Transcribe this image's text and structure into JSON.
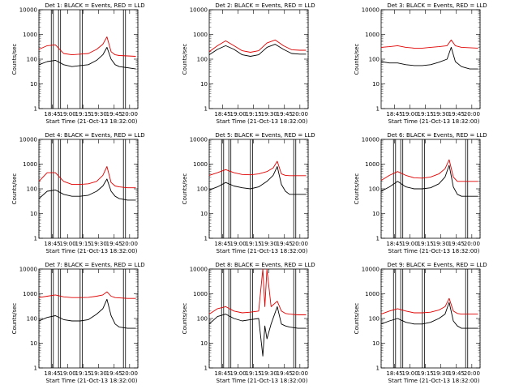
{
  "panel_titles": [
    "Det 1: BLACK = Events, RED = LLD",
    "Det 2: BLACK = Events, RED = LLD",
    "Det 3: BLACK = Events, RED = LLD",
    "Det 4: BLACK = Events, RED = LLD",
    "Det 5: BLACK = Events, RED = LLD",
    "Det 6: BLACK = Events, RED = LLD",
    "Det 7: BLACK = Events, RED = LLD",
    "Det 8: BLACK = Events, RED = LLD",
    "Det 9: BLACK = Events, RED = LLD"
  ],
  "ylabel": "Counts/sec",
  "xlabel": "Start Time (21-Oct-13 18:32:00)",
  "colors": {
    "events": "#000000",
    "lld": "#e00000"
  },
  "chart_data": [
    {
      "type": "line",
      "title": "Det 1: BLACK = Events, RED = LLD",
      "xlabel": "Start Time (21-Oct-13 18:32:00)",
      "ylabel": "Counts/sec",
      "y_scale": "log",
      "ylim": [
        1,
        10000
      ],
      "y_ticks": [
        "1",
        "10",
        "100",
        "1000",
        "10000"
      ],
      "x_ticks": [
        "18:45",
        "19:00",
        "19:15",
        "19:30",
        "19:45",
        "20:00"
      ],
      "x": [
        "18:32",
        "18:40",
        "18:48",
        "18:56",
        "19:04",
        "19:12",
        "19:20",
        "19:28",
        "19:34",
        "19:38",
        "19:42",
        "19:46",
        "19:50",
        "19:58",
        "20:06"
      ],
      "series": [
        {
          "name": "BLACK = Events",
          "values": [
            60,
            80,
            90,
            60,
            50,
            55,
            60,
            90,
            150,
            300,
            100,
            60,
            50,
            45,
            40
          ]
        },
        {
          "name": "RED = LLD",
          "values": [
            250,
            350,
            380,
            170,
            150,
            160,
            170,
            250,
            400,
            800,
            200,
            150,
            140,
            135,
            130
          ]
        }
      ],
      "vertical_lines": [
        "18:44",
        "18:46",
        "18:51",
        "18:53",
        "19:12",
        "19:14",
        "19:54",
        "19:56"
      ],
      "dotted_lines": [
        "18:32",
        "20:08"
      ]
    },
    {
      "type": "line",
      "title": "Det 2: BLACK = Events, RED = LLD",
      "xlabel": "Start Time (21-Oct-13 18:32:00)",
      "ylabel": "Counts/sec",
      "y_scale": "log",
      "ylim": [
        1,
        10000
      ],
      "y_ticks": [
        "1",
        "10",
        "100",
        "1000",
        "10000"
      ],
      "x_ticks": [
        "18:45",
        "19:00",
        "19:15",
        "19:30",
        "19:45",
        "20:00"
      ],
      "x": [
        "18:32",
        "18:40",
        "18:48",
        "18:56",
        "19:04",
        "19:12",
        "19:20",
        "19:28",
        "19:36",
        "19:44",
        "19:52",
        "20:00",
        "20:06"
      ],
      "series": [
        {
          "name": "BLACK = Events",
          "values": [
            150,
            250,
            350,
            250,
            150,
            130,
            150,
            300,
            400,
            250,
            170,
            160,
            160
          ]
        },
        {
          "name": "RED = LLD",
          "values": [
            200,
            350,
            550,
            350,
            220,
            190,
            220,
            450,
            600,
            350,
            240,
            230,
            230
          ]
        }
      ],
      "vertical_lines": [],
      "dotted_lines": [
        "20:08"
      ]
    },
    {
      "type": "line",
      "title": "Det 3: BLACK = Events, RED = LLD",
      "xlabel": "Start Time (21-Oct-13 18:32:00)",
      "ylabel": "Counts/sec",
      "y_scale": "log",
      "ylim": [
        1,
        10000
      ],
      "y_ticks": [
        "1",
        "10",
        "100",
        "1000",
        "10000"
      ],
      "x_ticks": [
        "18:45",
        "19:00",
        "19:15",
        "19:30",
        "19:45",
        "20:00"
      ],
      "x": [
        "18:32",
        "18:40",
        "18:48",
        "18:56",
        "19:04",
        "19:12",
        "19:20",
        "19:28",
        "19:36",
        "19:40",
        "19:44",
        "19:50",
        "19:58",
        "20:06"
      ],
      "series": [
        {
          "name": "BLACK = Events",
          "values": [
            80,
            70,
            70,
            60,
            55,
            55,
            60,
            75,
            100,
            300,
            80,
            50,
            40,
            40
          ]
        },
        {
          "name": "RED = LLD",
          "values": [
            300,
            320,
            350,
            300,
            280,
            280,
            300,
            320,
            350,
            600,
            350,
            300,
            290,
            280
          ]
        }
      ],
      "vertical_lines": [],
      "dotted_lines": [
        "20:08"
      ]
    },
    {
      "type": "line",
      "title": "Det 4: BLACK = Events, RED = LLD",
      "xlabel": "Start Time (21-Oct-13 18:32:00)",
      "ylabel": "Counts/sec",
      "y_scale": "log",
      "ylim": [
        1,
        10000
      ],
      "y_ticks": [
        "1",
        "10",
        "100",
        "1000",
        "10000"
      ],
      "x_ticks": [
        "18:45",
        "19:00",
        "19:15",
        "19:30",
        "19:45",
        "20:00"
      ],
      "x": [
        "18:32",
        "18:40",
        "18:48",
        "18:56",
        "19:04",
        "19:12",
        "19:20",
        "19:28",
        "19:34",
        "19:38",
        "19:42",
        "19:46",
        "19:50",
        "19:58",
        "20:06"
      ],
      "series": [
        {
          "name": "BLACK = Events",
          "values": [
            40,
            80,
            90,
            60,
            50,
            50,
            55,
            80,
            130,
            250,
            80,
            50,
            40,
            35,
            35
          ]
        },
        {
          "name": "RED = LLD",
          "values": [
            200,
            450,
            450,
            200,
            150,
            150,
            160,
            200,
            350,
            800,
            180,
            130,
            120,
            110,
            110
          ]
        }
      ],
      "vertical_lines": [
        "18:44",
        "18:46",
        "18:51",
        "18:53",
        "19:12",
        "19:14",
        "19:54",
        "19:56"
      ],
      "dotted_lines": [
        "18:32",
        "20:08"
      ]
    },
    {
      "type": "line",
      "title": "Det 5: BLACK = Events, RED = LLD",
      "xlabel": "Start Time (21-Oct-13 18:32:00)",
      "ylabel": "Counts/sec",
      "y_scale": "log",
      "ylim": [
        1,
        10000
      ],
      "y_ticks": [
        "1",
        "10",
        "100",
        "1000",
        "10000"
      ],
      "x_ticks": [
        "18:45",
        "19:00",
        "19:15",
        "19:30",
        "19:45",
        "20:00"
      ],
      "x": [
        "18:32",
        "18:40",
        "18:48",
        "18:56",
        "19:04",
        "19:12",
        "19:20",
        "19:28",
        "19:34",
        "19:38",
        "19:42",
        "19:46",
        "19:50",
        "19:58",
        "20:06"
      ],
      "series": [
        {
          "name": "BLACK = Events",
          "values": [
            90,
            120,
            180,
            130,
            110,
            100,
            120,
            200,
            350,
            800,
            150,
            80,
            60,
            60,
            60
          ]
        },
        {
          "name": "RED = LLD",
          "values": [
            350,
            450,
            600,
            450,
            380,
            370,
            400,
            500,
            700,
            1300,
            400,
            350,
            340,
            340,
            340
          ]
        }
      ],
      "vertical_lines": [
        "18:44",
        "18:46",
        "18:51",
        "18:53",
        "19:12",
        "19:14",
        "19:54",
        "19:56"
      ],
      "dotted_lines": [
        "18:32",
        "20:08"
      ]
    },
    {
      "type": "line",
      "title": "Det 6: BLACK = Events, RED = LLD",
      "xlabel": "Start Time (21-Oct-13 18:32:00)",
      "ylabel": "Counts/sec",
      "y_scale": "log",
      "ylim": [
        1,
        10000
      ],
      "y_ticks": [
        "1",
        "10",
        "100",
        "1000",
        "10000"
      ],
      "x_ticks": [
        "18:45",
        "19:00",
        "19:15",
        "19:30",
        "19:45",
        "20:00"
      ],
      "x": [
        "18:32",
        "18:40",
        "18:48",
        "18:56",
        "19:04",
        "19:12",
        "19:20",
        "19:28",
        "19:34",
        "19:38",
        "19:42",
        "19:46",
        "19:50",
        "19:58",
        "20:06"
      ],
      "series": [
        {
          "name": "BLACK = Events",
          "values": [
            80,
            120,
            200,
            120,
            100,
            100,
            110,
            160,
            300,
            900,
            120,
            60,
            50,
            50,
            50
          ]
        },
        {
          "name": "RED = LLD",
          "values": [
            220,
            350,
            500,
            350,
            280,
            270,
            300,
            400,
            650,
            1500,
            300,
            200,
            200,
            200,
            200
          ]
        }
      ],
      "vertical_lines": [
        "18:44",
        "18:46",
        "18:51",
        "18:53",
        "19:12",
        "19:14",
        "19:54",
        "19:56"
      ],
      "dotted_lines": [
        "18:32",
        "20:08"
      ]
    },
    {
      "type": "line",
      "title": "Det 7: BLACK = Events, RED = LLD",
      "xlabel": "Start Time (21-Oct-13 18:32:00)",
      "ylabel": "Counts/sec",
      "y_scale": "log",
      "ylim": [
        1,
        10000
      ],
      "y_ticks": [
        "1",
        "10",
        "100",
        "1000",
        "10000"
      ],
      "x_ticks": [
        "18:45",
        "19:00",
        "19:15",
        "19:30",
        "19:45",
        "20:00"
      ],
      "x": [
        "18:32",
        "18:40",
        "18:48",
        "18:56",
        "19:04",
        "19:12",
        "19:20",
        "19:28",
        "19:34",
        "19:38",
        "19:42",
        "19:46",
        "19:50",
        "19:58",
        "20:06"
      ],
      "series": [
        {
          "name": "BLACK = Events",
          "values": [
            80,
            110,
            130,
            90,
            80,
            80,
            90,
            150,
            250,
            600,
            130,
            60,
            45,
            40,
            40
          ]
        },
        {
          "name": "RED = LLD",
          "values": [
            700,
            800,
            900,
            750,
            700,
            700,
            720,
            800,
            900,
            1200,
            800,
            700,
            680,
            650,
            650
          ]
        }
      ],
      "vertical_lines": [
        "18:44",
        "18:46",
        "18:51",
        "18:53",
        "19:12",
        "19:14",
        "19:54",
        "19:56"
      ],
      "dotted_lines": [
        "18:32",
        "20:08"
      ]
    },
    {
      "type": "line",
      "title": "Det 8: BLACK = Events, RED = LLD",
      "xlabel": "Start Time (21-Oct-13 18:32:00)",
      "ylabel": "Counts/sec",
      "y_scale": "log",
      "ylim": [
        1,
        10000
      ],
      "y_ticks": [
        "1",
        "10",
        "100",
        "1000",
        "10000"
      ],
      "x_ticks": [
        "18:45",
        "19:00",
        "19:15",
        "19:30",
        "19:45",
        "20:00"
      ],
      "x": [
        "18:32",
        "18:40",
        "18:48",
        "18:56",
        "19:04",
        "19:12",
        "19:20",
        "19:24",
        "19:26",
        "19:28",
        "19:32",
        "19:38",
        "19:42",
        "19:46",
        "19:50",
        "19:58",
        "20:06"
      ],
      "series": [
        {
          "name": "BLACK = Events",
          "values": [
            60,
            120,
            150,
            100,
            80,
            90,
            100,
            3,
            50,
            15,
            60,
            300,
            60,
            50,
            45,
            40,
            40
          ]
        },
        {
          "name": "RED = LLD",
          "values": [
            150,
            250,
            300,
            200,
            170,
            180,
            200,
            10000,
            300,
            10000,
            300,
            500,
            200,
            160,
            150,
            140,
            140
          ]
        }
      ],
      "vertical_lines": [
        "18:44",
        "18:46",
        "18:51",
        "18:53",
        "19:12",
        "19:14",
        "19:54",
        "19:56"
      ],
      "dotted_lines": [
        "18:32",
        "20:08"
      ]
    },
    {
      "type": "line",
      "title": "Det 9: BLACK = Events, RED = LLD",
      "xlabel": "Start Time (21-Oct-13 18:32:00)",
      "ylabel": "Counts/sec",
      "y_scale": "log",
      "ylim": [
        1,
        10000
      ],
      "y_ticks": [
        "1",
        "10",
        "100",
        "1000",
        "10000"
      ],
      "x_ticks": [
        "18:45",
        "19:00",
        "19:15",
        "19:30",
        "19:45",
        "20:00"
      ],
      "x": [
        "18:32",
        "18:40",
        "18:48",
        "18:56",
        "19:04",
        "19:12",
        "19:20",
        "19:28",
        "19:34",
        "19:38",
        "19:42",
        "19:46",
        "19:50",
        "19:58",
        "20:06"
      ],
      "series": [
        {
          "name": "BLACK = Events",
          "values": [
            60,
            80,
            100,
            70,
            60,
            60,
            70,
            100,
            150,
            450,
            80,
            50,
            40,
            40,
            40
          ]
        },
        {
          "name": "RED = LLD",
          "values": [
            150,
            200,
            250,
            200,
            170,
            170,
            180,
            220,
            300,
            650,
            200,
            160,
            150,
            150,
            150
          ]
        }
      ],
      "vertical_lines": [
        "18:44",
        "18:46",
        "18:51",
        "18:53",
        "19:12",
        "19:14",
        "19:54",
        "19:56"
      ],
      "dotted_lines": [
        "18:32",
        "20:08"
      ]
    }
  ]
}
